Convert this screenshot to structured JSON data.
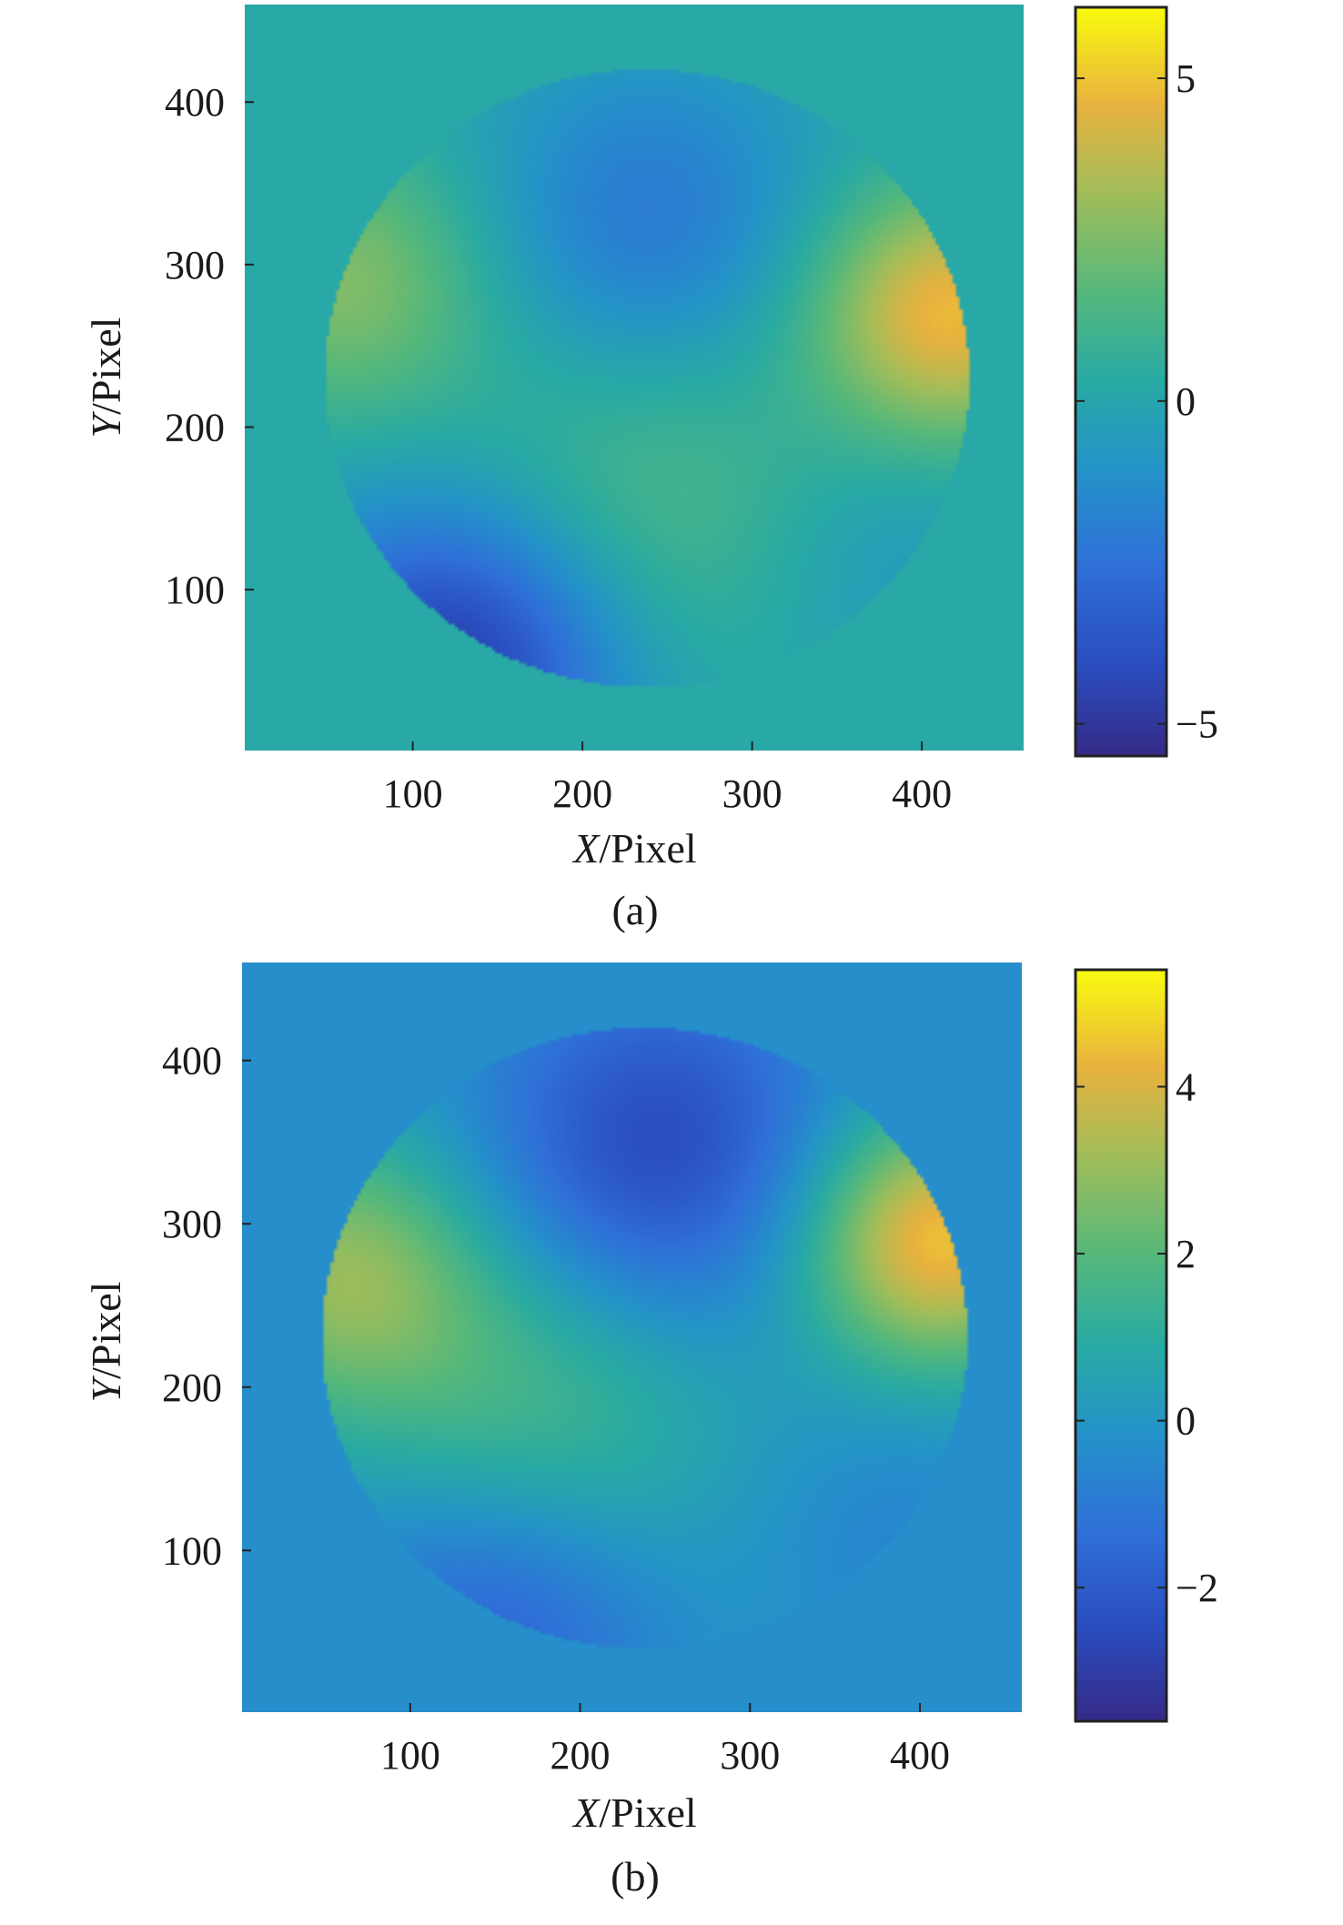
{
  "chart_data": [
    {
      "type": "heatmap",
      "caption": "(a)",
      "xlabel_var": "X",
      "xlabel_unit": "/Pixel",
      "ylabel_var": "Y",
      "ylabel_unit": "/Pixel",
      "xlim": [
        1,
        460
      ],
      "ylim": [
        1,
        460
      ],
      "xticks": [
        100,
        200,
        300,
        400
      ],
      "yticks": [
        100,
        200,
        300,
        400
      ],
      "background_value": 0.2,
      "aperture": {
        "center_x": 238,
        "center_y": 230,
        "radius": 190
      },
      "features": [
        {
          "x": 238,
          "y": 325,
          "value": -2.2,
          "sigma": 70
        },
        {
          "x": 232,
          "y": 150,
          "value": 1.6,
          "sigma": 85
        },
        {
          "x": 125,
          "y": 55,
          "value": -5.0,
          "sigma": 70
        },
        {
          "x": 415,
          "y": 270,
          "value": 4.8,
          "sigma": 55
        },
        {
          "x": 60,
          "y": 290,
          "value": 2.6,
          "sigma": 60
        },
        {
          "x": 380,
          "y": 120,
          "value": -0.8,
          "sigma": 60
        }
      ],
      "colorbar": {
        "min": -5.5,
        "max": 6.1,
        "ticks": [
          5,
          0,
          -5
        ],
        "tick_labels": [
          "5",
          "0",
          "−5"
        ]
      }
    },
    {
      "type": "heatmap",
      "caption": "(b)",
      "xlabel_var": "X",
      "xlabel_unit": "/Pixel",
      "ylabel_var": "Y",
      "ylabel_unit": "/Pixel",
      "xlim": [
        1,
        460
      ],
      "ylim": [
        1,
        460
      ],
      "xticks": [
        100,
        200,
        300,
        400
      ],
      "yticks": [
        100,
        200,
        300,
        400
      ],
      "background_value": -0.3,
      "aperture": {
        "center_x": 238,
        "center_y": 230,
        "radius": 190
      },
      "features": [
        {
          "x": 245,
          "y": 345,
          "value": -2.6,
          "sigma": 75
        },
        {
          "x": 175,
          "y": 180,
          "value": 1.8,
          "sigma": 80
        },
        {
          "x": 150,
          "y": 60,
          "value": -2.0,
          "sigma": 70
        },
        {
          "x": 410,
          "y": 290,
          "value": 4.6,
          "sigma": 55
        },
        {
          "x": 60,
          "y": 270,
          "value": 2.8,
          "sigma": 60
        },
        {
          "x": 390,
          "y": 110,
          "value": -0.6,
          "sigma": 60
        }
      ],
      "colorbar": {
        "min": -3.6,
        "max": 5.4,
        "ticks": [
          4,
          2,
          0,
          -2
        ],
        "tick_labels": [
          "4",
          "2",
          "0",
          "−2"
        ]
      }
    }
  ]
}
